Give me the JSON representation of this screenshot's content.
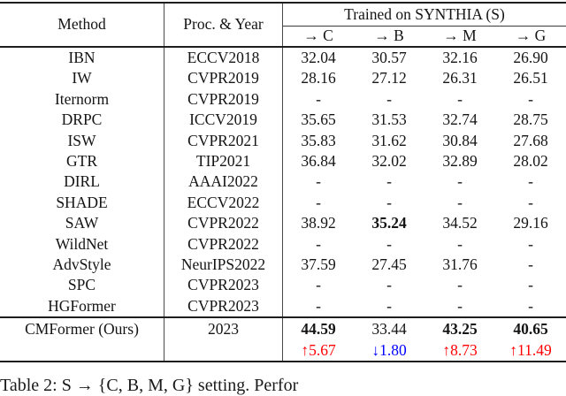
{
  "table": {
    "header": {
      "method": "Method",
      "proc_year": "Proc. & Year",
      "group": "Trained on SYNTHIA (S)",
      "cols": [
        "→ C",
        "→ B",
        "→ M",
        "→ G"
      ]
    },
    "rows": [
      {
        "method": "IBN",
        "year": "ECCV2018",
        "vals": [
          "32.04",
          "30.57",
          "32.16",
          "26.90"
        ]
      },
      {
        "method": "IW",
        "year": "CVPR2019",
        "vals": [
          "28.16",
          "27.12",
          "26.31",
          "26.51"
        ]
      },
      {
        "method": "Iternorm",
        "year": "CVPR2019",
        "vals": [
          "-",
          "-",
          "-",
          "-"
        ]
      },
      {
        "method": "DRPC",
        "year": "ICCV2019",
        "vals": [
          "35.65",
          "31.53",
          "32.74",
          "28.75"
        ]
      },
      {
        "method": "ISW",
        "year": "CVPR2021",
        "vals": [
          "35.83",
          "31.62",
          "30.84",
          "27.68"
        ]
      },
      {
        "method": "GTR",
        "year": "TIP2021",
        "vals": [
          "36.84",
          "32.02",
          "32.89",
          "28.02"
        ]
      },
      {
        "method": "DIRL",
        "year": "AAAI2022",
        "vals": [
          "-",
          "-",
          "-",
          "-"
        ]
      },
      {
        "method": "SHADE",
        "year": "ECCV2022",
        "vals": [
          "-",
          "-",
          "-",
          "-"
        ]
      },
      {
        "method": "SAW",
        "year": "CVPR2022",
        "vals": [
          "38.92",
          "35.24",
          "34.52",
          "29.16"
        ]
      },
      {
        "method": "WildNet",
        "year": "CVPR2022",
        "vals": [
          "-",
          "-",
          "-",
          "-"
        ]
      },
      {
        "method": "AdvStyle",
        "year": "NeurIPS2022",
        "vals": [
          "37.59",
          "27.45",
          "31.76",
          "-"
        ]
      },
      {
        "method": "SPC",
        "year": "CVPR2023",
        "vals": [
          "-",
          "-",
          "-",
          "-"
        ]
      },
      {
        "method": "HGFormer",
        "year": "CVPR2023",
        "vals": [
          "-",
          "-",
          "-",
          "-"
        ]
      }
    ],
    "ours": {
      "method": "CMFormer (Ours)",
      "year": "2023",
      "vals": [
        "44.59",
        "33.44",
        "43.25",
        "40.65"
      ]
    },
    "delta": {
      "vals": [
        "↑5.67",
        "↓1.80",
        "↑8.73",
        "↑11.49"
      ]
    }
  },
  "caption": "Table 2: S → {C, B, M, G} setting. Perfor",
  "colors": {
    "gain_red": "#ff0000",
    "drop_blue": "#0000ff",
    "rule_dark": "#1e1e1e",
    "rule_gray": "#4a4a4a"
  }
}
